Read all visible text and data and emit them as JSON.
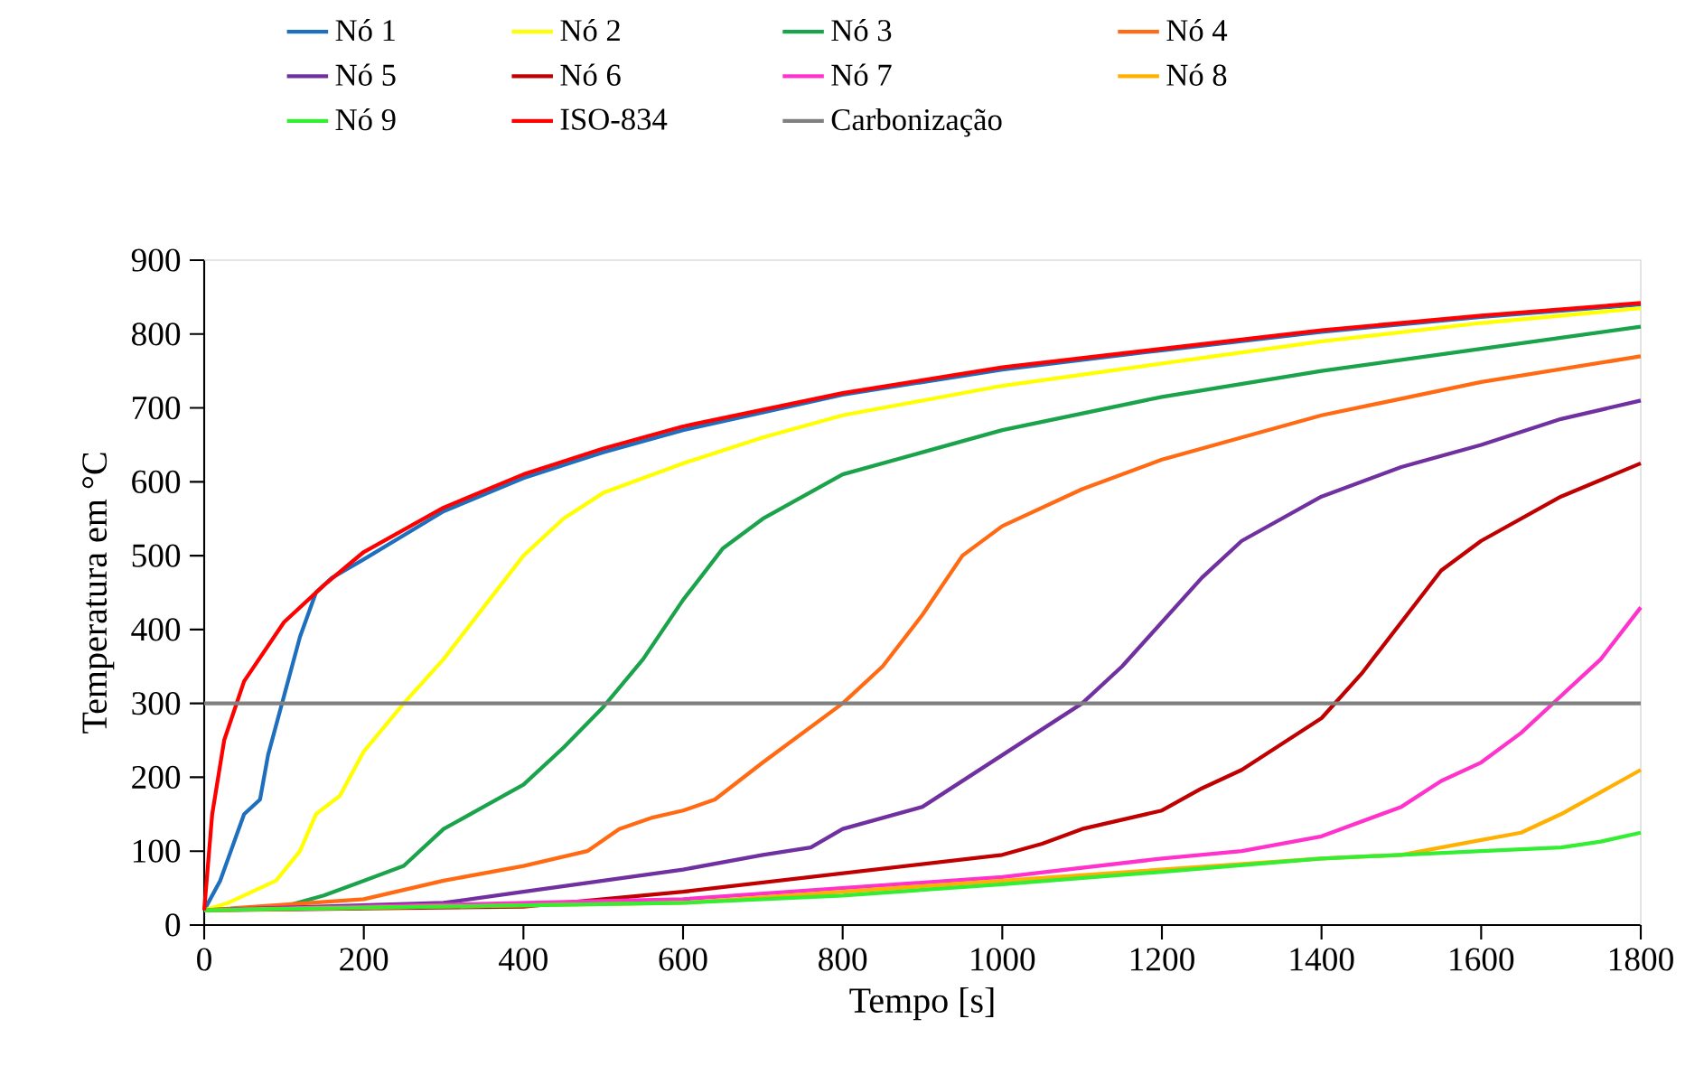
{
  "chart_data": {
    "type": "line",
    "xlabel": "Tempo  [s]",
    "ylabel": "Temperatura  em °C",
    "xlim": [
      0,
      1800
    ],
    "xticks": [
      0,
      200,
      400,
      600,
      800,
      1000,
      1200,
      1400,
      1600,
      1800
    ],
    "ylim": [
      0,
      900
    ],
    "yticks": [
      0,
      100,
      200,
      300,
      400,
      500,
      600,
      700,
      800,
      900
    ],
    "grid": false,
    "legend": "top",
    "marker": "none",
    "line_style": "solid",
    "series": [
      {
        "name": "Nó 1",
        "color": "#1f6fbf",
        "x": [
          0,
          20,
          40,
          50,
          60,
          70,
          80,
          100,
          120,
          140,
          160,
          200,
          300,
          400,
          500,
          600,
          800,
          1000,
          1200,
          1400,
          1600,
          1800
        ],
        "values": [
          20,
          60,
          120,
          150,
          160,
          170,
          230,
          310,
          390,
          450,
          470,
          495,
          560,
          605,
          640,
          670,
          718,
          752,
          778,
          803,
          823,
          840
        ]
      },
      {
        "name": "Nó 2",
        "color": "#ffff00",
        "x": [
          0,
          30,
          60,
          90,
          120,
          140,
          170,
          200,
          250,
          300,
          350,
          400,
          450,
          500,
          600,
          700,
          800,
          1000,
          1200,
          1400,
          1600,
          1800
        ],
        "values": [
          20,
          30,
          45,
          60,
          100,
          150,
          175,
          235,
          300,
          360,
          430,
          500,
          550,
          585,
          625,
          660,
          690,
          730,
          760,
          790,
          815,
          835
        ]
      },
      {
        "name": "Nó 3",
        "color": "#1aa34a",
        "x": [
          0,
          100,
          150,
          200,
          250,
          300,
          350,
          400,
          450,
          500,
          550,
          600,
          650,
          700,
          800,
          900,
          1000,
          1200,
          1400,
          1600,
          1800
        ],
        "values": [
          20,
          25,
          40,
          60,
          80,
          130,
          160,
          190,
          240,
          295,
          360,
          440,
          510,
          550,
          610,
          640,
          670,
          715,
          750,
          780,
          810
        ]
      },
      {
        "name": "Nó 4",
        "color": "#ff6a13",
        "x": [
          0,
          200,
          300,
          400,
          480,
          520,
          560,
          600,
          640,
          700,
          800,
          850,
          900,
          950,
          1000,
          1100,
          1150,
          1200,
          1300,
          1400,
          1600,
          1800
        ],
        "values": [
          20,
          35,
          60,
          80,
          100,
          130,
          145,
          155,
          170,
          220,
          300,
          350,
          420,
          500,
          540,
          590,
          610,
          630,
          660,
          690,
          735,
          770
        ]
      },
      {
        "name": "Nó 5",
        "color": "#7030a0",
        "x": [
          0,
          300,
          400,
          600,
          700,
          760,
          800,
          900,
          1000,
          1100,
          1150,
          1200,
          1250,
          1300,
          1400,
          1500,
          1600,
          1700,
          1800
        ],
        "values": [
          20,
          30,
          45,
          75,
          95,
          105,
          130,
          160,
          230,
          300,
          350,
          410,
          470,
          520,
          580,
          620,
          650,
          685,
          710
        ]
      },
      {
        "name": "Nó 6",
        "color": "#c00000",
        "x": [
          0,
          400,
          600,
          800,
          1000,
          1050,
          1100,
          1200,
          1250,
          1300,
          1400,
          1450,
          1500,
          1550,
          1600,
          1700,
          1800
        ],
        "values": [
          20,
          25,
          45,
          70,
          95,
          110,
          130,
          155,
          185,
          210,
          280,
          340,
          410,
          480,
          520,
          580,
          625
        ]
      },
      {
        "name": "Nó 7",
        "color": "#ff33cc",
        "x": [
          0,
          600,
          800,
          1000,
          1200,
          1300,
          1400,
          1500,
          1550,
          1600,
          1650,
          1700,
          1750,
          1800
        ],
        "values": [
          20,
          35,
          50,
          65,
          90,
          100,
          120,
          160,
          195,
          220,
          260,
          310,
          360,
          430
        ]
      },
      {
        "name": "Nó 8",
        "color": "#ffb000",
        "x": [
          0,
          600,
          800,
          1000,
          1200,
          1400,
          1500,
          1600,
          1650,
          1700,
          1750,
          1800
        ],
        "values": [
          20,
          30,
          45,
          60,
          75,
          90,
          95,
          115,
          125,
          150,
          180,
          210
        ]
      },
      {
        "name": "Nó 9",
        "color": "#33ee33",
        "x": [
          0,
          600,
          800,
          1000,
          1200,
          1400,
          1600,
          1700,
          1750,
          1800
        ],
        "values": [
          20,
          30,
          40,
          55,
          72,
          90,
          100,
          105,
          113,
          125
        ]
      },
      {
        "name": "ISO-834",
        "color": "#ff0000",
        "x": [
          0,
          10,
          25,
          50,
          100,
          150,
          200,
          300,
          400,
          500,
          600,
          800,
          1000,
          1200,
          1400,
          1600,
          1800
        ],
        "values": [
          20,
          150,
          250,
          330,
          410,
          460,
          505,
          565,
          610,
          645,
          675,
          720,
          755,
          780,
          805,
          825,
          842
        ]
      }
    ],
    "ref_lines": [
      {
        "axis": "y",
        "value": 300,
        "label": "Carbonização",
        "color": "#808080",
        "line_style": "solid"
      }
    ]
  }
}
